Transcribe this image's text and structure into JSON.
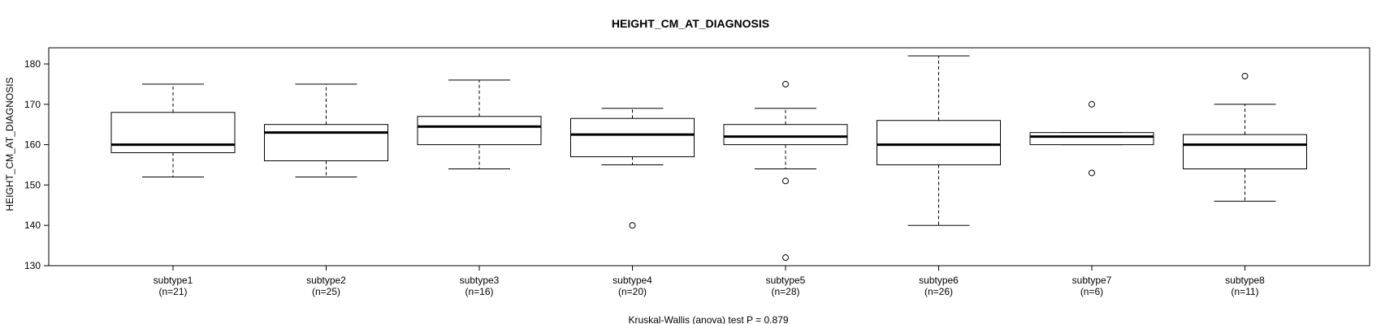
{
  "chart_data": {
    "type": "boxplot",
    "title": "HEIGHT_CM_AT_DIAGNOSIS",
    "ylabel": "HEIGHT_CM_AT_DIAGNOSIS",
    "xlabel": "",
    "ylim": [
      130,
      185
    ],
    "yticks": [
      130,
      140,
      150,
      160,
      170,
      180
    ],
    "footnote": "Kruskal-Wallis (anova) test P = 0.879",
    "groups": [
      {
        "name": "subtype1",
        "count_label": "(n=21)",
        "whisker_low": 152,
        "q1": 158,
        "median": 160,
        "q3": 168,
        "whisker_high": 175,
        "outliers": []
      },
      {
        "name": "subtype2",
        "count_label": "(n=25)",
        "whisker_low": 152,
        "q1": 156,
        "median": 163,
        "q3": 165,
        "whisker_high": 175,
        "outliers": []
      },
      {
        "name": "subtype3",
        "count_label": "(n=16)",
        "whisker_low": 154,
        "q1": 160,
        "median": 164.5,
        "q3": 167,
        "whisker_high": 176,
        "outliers": []
      },
      {
        "name": "subtype4",
        "count_label": "(n=20)",
        "whisker_low": 155,
        "q1": 157,
        "median": 162.5,
        "q3": 166.5,
        "whisker_high": 169,
        "outliers": [
          140
        ]
      },
      {
        "name": "subtype5",
        "count_label": "(n=28)",
        "whisker_low": 154,
        "q1": 160,
        "median": 162,
        "q3": 165,
        "whisker_high": 169,
        "outliers": [
          175,
          151,
          132
        ]
      },
      {
        "name": "subtype6",
        "count_label": "(n=26)",
        "whisker_low": 140,
        "q1": 155,
        "median": 160,
        "q3": 166,
        "whisker_high": 182,
        "outliers": []
      },
      {
        "name": "subtype7",
        "count_label": "(n=6)",
        "whisker_low": 160,
        "q1": 160,
        "median": 162,
        "q3": 163,
        "whisker_high": 163,
        "outliers": [
          170,
          153
        ]
      },
      {
        "name": "subtype8",
        "count_label": "(n=11)",
        "whisker_low": 146,
        "q1": 154,
        "median": 160,
        "q3": 162.5,
        "whisker_high": 170,
        "outliers": [
          177
        ]
      }
    ]
  }
}
